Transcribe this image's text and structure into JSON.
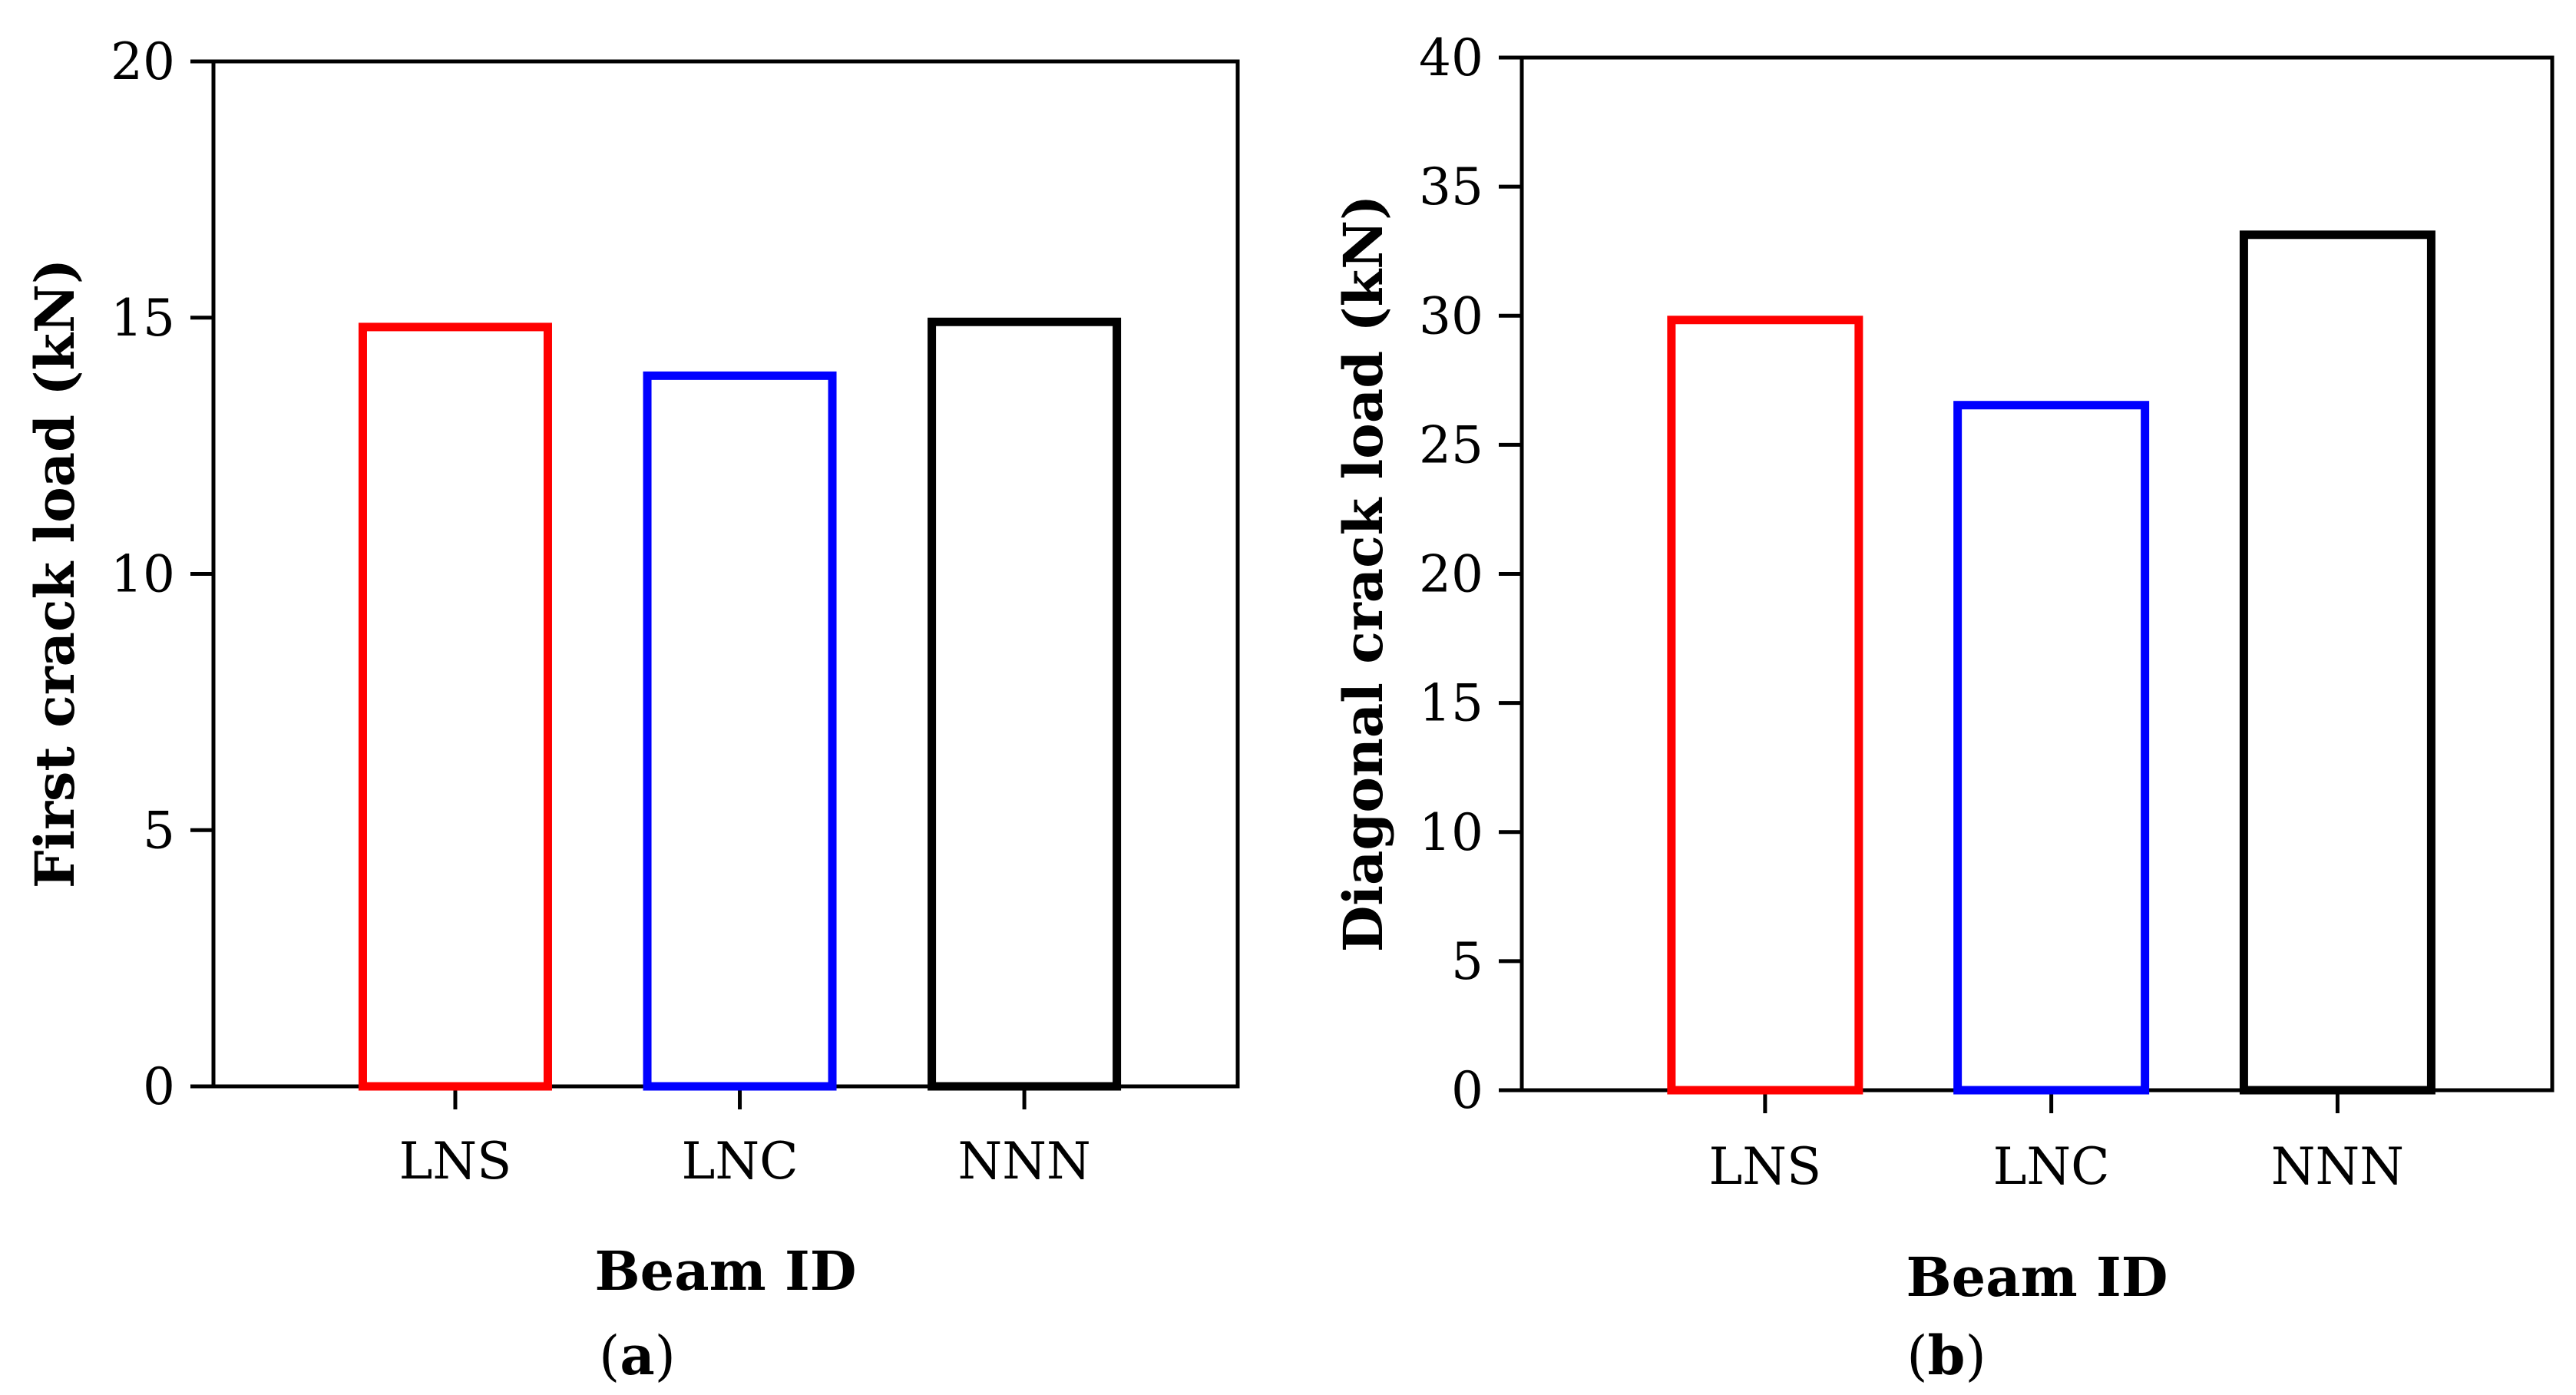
{
  "chart_data": [
    {
      "type": "bar",
      "panel_label": "a",
      "categories": [
        "LNS",
        "LNC",
        "NNN"
      ],
      "values": [
        14.9,
        13.95,
        15.0
      ],
      "bar_colors": [
        "#ff0000",
        "#0000ff",
        "#000000"
      ],
      "bar_fill": "none",
      "xlabel": "Beam ID",
      "ylabel": "First crack load (kN)",
      "ylim": [
        0,
        20
      ],
      "yticks": [
        0,
        5,
        10,
        15,
        20
      ],
      "grid": false,
      "legend": "none"
    },
    {
      "type": "bar",
      "panel_label": "b",
      "categories": [
        "LNS",
        "LNC",
        "NNN"
      ],
      "values": [
        30.0,
        26.7,
        33.3
      ],
      "bar_colors": [
        "#ff0000",
        "#0000ff",
        "#000000"
      ],
      "bar_fill": "none",
      "xlabel": "Beam ID",
      "ylabel": "Diagonal crack load (kN)",
      "ylim": [
        0,
        40
      ],
      "yticks": [
        0,
        5,
        10,
        15,
        20,
        25,
        30,
        35,
        40
      ],
      "grid": false,
      "legend": "none"
    }
  ]
}
